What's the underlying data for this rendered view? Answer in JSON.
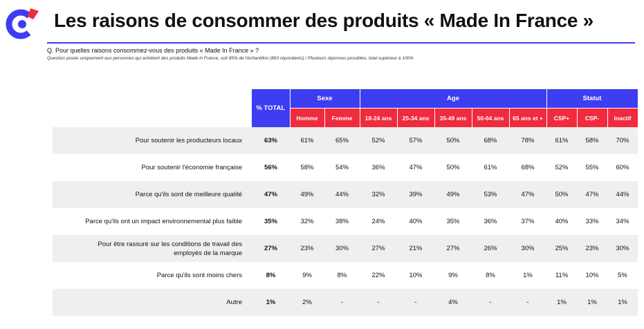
{
  "title": "Les raisons de consommer des produits « Made In France »",
  "question": "Q. Pour quelles raisons consommez-vous des produits « Made In France » ?",
  "note": "Question posée uniquement aux personnes qui achètent des produits Made in France, soit 85% de l'échantillon (863 répondants) / Plusieurs réponses possibles, total supérieur à 100%",
  "colors": {
    "blue": "#3d3df2",
    "red": "#ef2b3d",
    "shade": "#efefef"
  },
  "table": {
    "total_header": "% TOTAL",
    "groups": [
      "Sexe",
      "Age",
      "Statut"
    ],
    "subheaders": [
      "Homme",
      "Femme",
      "18-24 ans",
      "25-34 ans",
      "35-49 ans",
      "50-64 ans",
      "65 ans et +",
      "CSP+",
      "CSP-",
      "Inactif"
    ],
    "rows": [
      {
        "label": "Pour soutenir les producteurs locaux",
        "total": "63%",
        "values": [
          "61%",
          "65%",
          "52%",
          "57%",
          "50%",
          "68%",
          "78%",
          "61%",
          "58%",
          "70%"
        ]
      },
      {
        "label": "Pour soutenir l'économie française",
        "total": "56%",
        "values": [
          "58%",
          "54%",
          "36%",
          "47%",
          "50%",
          "61%",
          "68%",
          "52%",
          "55%",
          "60%"
        ]
      },
      {
        "label": "Parce qu'ils sont de meilleure qualité",
        "total": "47%",
        "values": [
          "49%",
          "44%",
          "32%",
          "39%",
          "49%",
          "53%",
          "47%",
          "50%",
          "47%",
          "44%"
        ]
      },
      {
        "label": "Parce qu'ils ont un impact environnemental plus faible",
        "total": "35%",
        "values": [
          "32%",
          "38%",
          "24%",
          "40%",
          "35%",
          "36%",
          "37%",
          "40%",
          "33%",
          "34%"
        ]
      },
      {
        "label_line1": "Pour être rassuré sur les conditions de travail des",
        "label_line2": "employés de la marque",
        "total": "27%",
        "values": [
          "23%",
          "30%",
          "27%",
          "21%",
          "27%",
          "26%",
          "30%",
          "25%",
          "23%",
          "30%"
        ]
      },
      {
        "label": "Parce qu'ils sont moins chers",
        "total": "8%",
        "values": [
          "9%",
          "8%",
          "22%",
          "10%",
          "9%",
          "8%",
          "1%",
          "11%",
          "10%",
          "5%"
        ]
      },
      {
        "label": "Autre",
        "total": "1%",
        "values": [
          "2%",
          "-",
          "-",
          "-",
          "4%",
          "-",
          "-",
          "1%",
          "1%",
          "1%"
        ]
      }
    ]
  }
}
